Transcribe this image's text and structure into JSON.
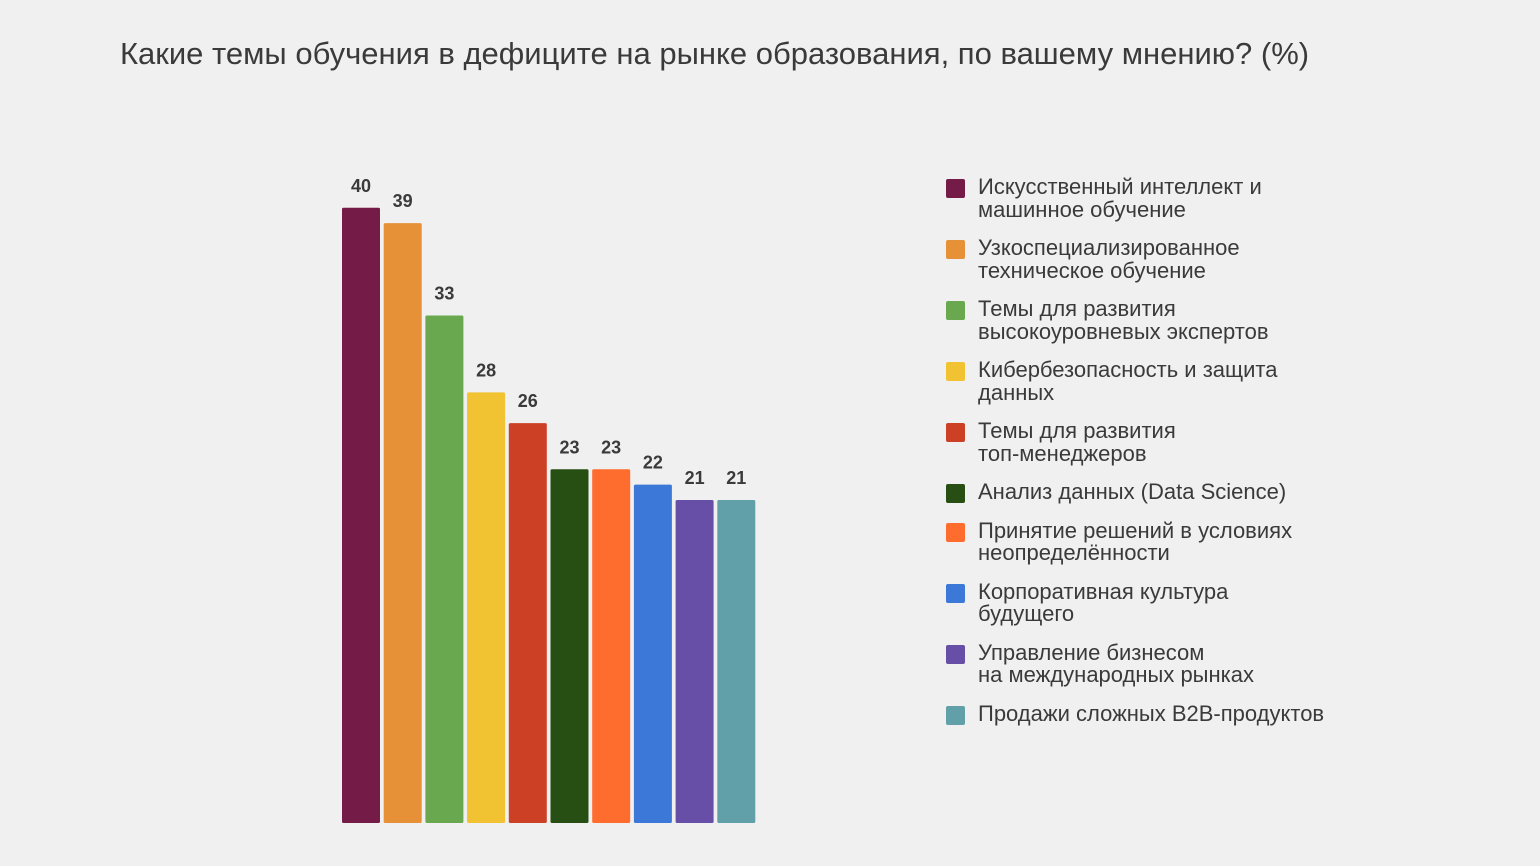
{
  "chart_data": {
    "type": "bar",
    "title": "Какие темы обучения в дефиците на рынке образования, по вашему мнению? (%)",
    "xlabel": "",
    "ylabel": "",
    "ylim": [
      0,
      40
    ],
    "grid": false,
    "legend_position": "right",
    "categories": [
      "Искусственный интеллект и\nмашинное обучение",
      "Узкоспециализированное\nтехническое обучение",
      "Темы для развития\nвысокоуровневых экспертов",
      "Кибербезопасность и защита\nданных",
      "Темы для развития\nтоп-менеджеров",
      "Анализ данных (Data Science)",
      "Принятие решений в условиях\nнеопределённости",
      "Корпоративная культура\nбудущего",
      "Управление бизнесом\nна международных рынках",
      "Продажи сложных B2B-продуктов"
    ],
    "values": [
      40,
      39,
      33,
      28,
      26,
      23,
      23,
      22,
      21,
      21
    ],
    "colors": [
      "#741b47",
      "#e69138",
      "#6aa84f",
      "#f1c232",
      "#cc4125",
      "#274e13",
      "#ff6d2e",
      "#3c78d8",
      "#674ea7",
      "#61a0a8"
    ]
  }
}
